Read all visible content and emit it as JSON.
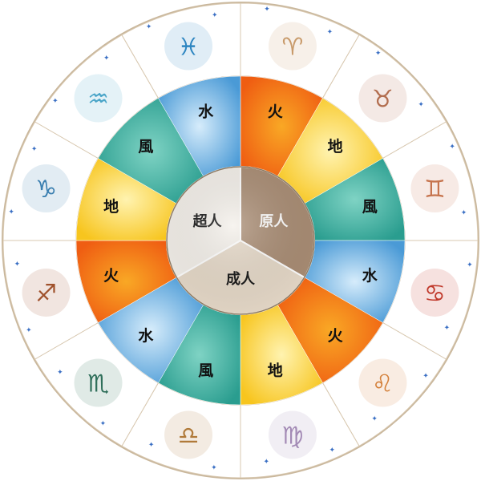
{
  "diagram": {
    "elements": {
      "fire": {
        "label": "火",
        "colors": [
          "#f9a825",
          "#ef5d12"
        ]
      },
      "earth": {
        "label": "地",
        "colors": [
          "#fff3b0",
          "#f7c51e"
        ]
      },
      "air": {
        "label": "風",
        "colors": [
          "#7fd3c4",
          "#2a9d8f"
        ]
      },
      "water": {
        "label": "水",
        "colors": [
          "#d6ecfb",
          "#4a9ad6"
        ]
      }
    },
    "segments": [
      {
        "element": "fire",
        "sign": "aries",
        "glyph": "♈",
        "glyph_color": "#c89a6a"
      },
      {
        "element": "earth",
        "sign": "taurus",
        "glyph": "♉",
        "glyph_color": "#b26d4e"
      },
      {
        "element": "air",
        "sign": "gemini",
        "glyph": "♊",
        "glyph_color": "#c6744e"
      },
      {
        "element": "water",
        "sign": "cancer",
        "glyph": "♋",
        "glyph_color": "#c0392b"
      },
      {
        "element": "fire",
        "sign": "leo",
        "glyph": "♌",
        "glyph_color": "#d4803a"
      },
      {
        "element": "earth",
        "sign": "virgo",
        "glyph": "♍",
        "glyph_color": "#a38ab5"
      },
      {
        "element": "air",
        "sign": "libra",
        "glyph": "♎",
        "glyph_color": "#b07a3a"
      },
      {
        "element": "water",
        "sign": "scorpio",
        "glyph": "♏",
        "glyph_color": "#2f6f5a"
      },
      {
        "element": "fire",
        "sign": "sagittarius",
        "glyph": "♐",
        "glyph_color": "#a0522d"
      },
      {
        "element": "earth",
        "sign": "capricorn",
        "glyph": "♑",
        "glyph_color": "#3a7fb0"
      },
      {
        "element": "air",
        "sign": "aquarius",
        "glyph": "♒",
        "glyph_color": "#4aa5c8"
      },
      {
        "element": "water",
        "sign": "pisces",
        "glyph": "♓",
        "glyph_color": "#2e86c1"
      }
    ],
    "center": [
      {
        "label": "原人",
        "fill": "#a98c73",
        "text_color": "#ffffff"
      },
      {
        "label": "成人",
        "fill": "#e6d9c8",
        "text_color": "#111111"
      },
      {
        "label": "超人",
        "fill": "#f4f0ea",
        "text_color": "#111111"
      }
    ],
    "colors": {
      "ring_border": "#c9b79c",
      "divider": "#d8c8b0",
      "outer_fill": "#ffffff",
      "center_rim": "#8d7a62"
    },
    "decorations": {
      "star_glyph": "✦"
    }
  }
}
